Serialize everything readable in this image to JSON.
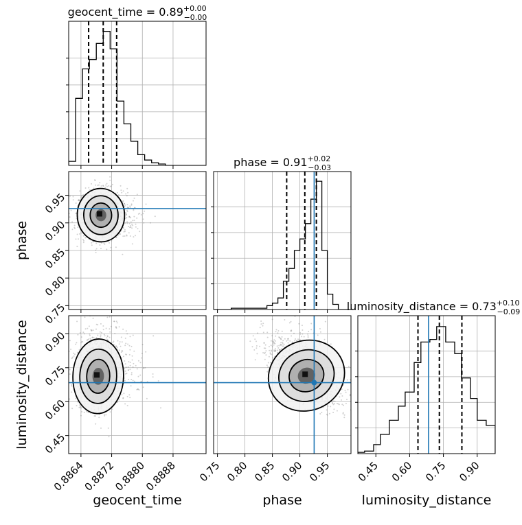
{
  "chart_data": {
    "type": "corner",
    "parameters": [
      {
        "name": "geocent_time",
        "median": 0.887,
        "range": [
          0.88608,
          0.88966
        ],
        "ticks": [
          "0.8864",
          "0.8872",
          "0.8880",
          "0.8888"
        ],
        "tick_values": [
          0.8864,
          0.8872,
          0.888,
          0.8888
        ],
        "truth": null,
        "quantiles": [
          0.8866,
          0.88698,
          0.88733
        ],
        "title": {
          "base": "geocent_time = 0.89",
          "sup": "+0.00",
          "sub": "−0.00"
        },
        "hist": [
          {
            "x": [
              0.88608,
              0.88626
            ],
            "y": 0.03
          },
          {
            "x": [
              0.88626,
              0.88644
            ],
            "y": 0.5
          },
          {
            "x": [
              0.88644,
              0.88662
            ],
            "y": 0.72
          },
          {
            "x": [
              0.88662,
              0.8868
            ],
            "y": 0.79
          },
          {
            "x": [
              0.8868,
              0.88698
            ],
            "y": 0.91
          },
          {
            "x": [
              0.88698,
              0.88716
            ],
            "y": 1.0
          },
          {
            "x": [
              0.88716,
              0.88734
            ],
            "y": 0.87
          },
          {
            "x": [
              0.88734,
              0.88752
            ],
            "y": 0.48
          },
          {
            "x": [
              0.88752,
              0.8877
            ],
            "y": 0.31
          },
          {
            "x": [
              0.8877,
              0.88788
            ],
            "y": 0.18
          },
          {
            "x": [
              0.88788,
              0.88806
            ],
            "y": 0.08
          },
          {
            "x": [
              0.88806,
              0.88824
            ],
            "y": 0.04
          },
          {
            "x": [
              0.88824,
              0.88842
            ],
            "y": 0.02
          },
          {
            "x": [
              0.88842,
              0.8886
            ],
            "y": 0.01
          },
          {
            "x": [
              0.8886,
              0.88966
            ],
            "y": 0.0
          }
        ]
      },
      {
        "name": "phase",
        "median": 0.91,
        "range": [
          0.743,
          0.993
        ],
        "ticks": [
          "0.75",
          "0.80",
          "0.85",
          "0.90",
          "0.95"
        ],
        "tick_values": [
          0.75,
          0.8,
          0.85,
          0.9,
          0.95
        ],
        "truth": 0.926,
        "quantiles": [
          0.876,
          0.909,
          0.93
        ],
        "title": {
          "base": "phase = 0.91",
          "sup": "+0.02",
          "sub": "−0.03"
        },
        "hist": [
          {
            "x": [
              0.743,
              0.775
            ],
            "y": 0.0
          },
          {
            "x": [
              0.775,
              0.84
            ],
            "y": 0.01
          },
          {
            "x": [
              0.84,
              0.85
            ],
            "y": 0.03
          },
          {
            "x": [
              0.85,
              0.86
            ],
            "y": 0.05
          },
          {
            "x": [
              0.86,
              0.87
            ],
            "y": 0.09
          },
          {
            "x": [
              0.87,
              0.88
            ],
            "y": 0.22
          },
          {
            "x": [
              0.88,
              0.89
            ],
            "y": 0.32
          },
          {
            "x": [
              0.89,
              0.9
            ],
            "y": 0.46
          },
          {
            "x": [
              0.9,
              0.91
            ],
            "y": 0.55
          },
          {
            "x": [
              0.91,
              0.92
            ],
            "y": 0.67
          },
          {
            "x": [
              0.92,
              0.93
            ],
            "y": 0.86
          },
          {
            "x": [
              0.93,
              0.94
            ],
            "y": 1.0
          },
          {
            "x": [
              0.94,
              0.95
            ],
            "y": 0.46
          },
          {
            "x": [
              0.95,
              0.96
            ],
            "y": 0.12
          },
          {
            "x": [
              0.96,
              0.97
            ],
            "y": 0.04
          },
          {
            "x": [
              0.97,
              0.993
            ],
            "y": 0.0
          }
        ]
      },
      {
        "name": "luminosity_distance",
        "median": 0.73,
        "range": [
          0.37,
          0.98
        ],
        "ticks": [
          "0.45",
          "0.60",
          "0.75",
          "0.90"
        ],
        "tick_values": [
          0.45,
          0.6,
          0.75,
          0.9
        ],
        "truth": 0.684,
        "quantiles": [
          0.637,
          0.732,
          0.832
        ],
        "title": {
          "base": "luminosity_distance = 0.73",
          "sup": "+0.10",
          "sub": "−0.09"
        },
        "hist": [
          {
            "x": [
              0.37,
              0.4
            ],
            "y": 0.01
          },
          {
            "x": [
              0.4,
              0.44
            ],
            "y": 0.02
          },
          {
            "x": [
              0.44,
              0.47
            ],
            "y": 0.07
          },
          {
            "x": [
              0.47,
              0.51
            ],
            "y": 0.15
          },
          {
            "x": [
              0.51,
              0.55
            ],
            "y": 0.26
          },
          {
            "x": [
              0.55,
              0.58
            ],
            "y": 0.37
          },
          {
            "x": [
              0.58,
              0.62
            ],
            "y": 0.48
          },
          {
            "x": [
              0.62,
              0.65
            ],
            "y": 0.71
          },
          {
            "x": [
              0.65,
              0.69
            ],
            "y": 0.87
          },
          {
            "x": [
              0.69,
              0.72
            ],
            "y": 0.89
          },
          {
            "x": [
              0.72,
              0.76
            ],
            "y": 0.99
          },
          {
            "x": [
              0.76,
              0.8
            ],
            "y": 0.87
          },
          {
            "x": [
              0.8,
              0.83
            ],
            "y": 0.78
          },
          {
            "x": [
              0.83,
              0.87
            ],
            "y": 0.59
          },
          {
            "x": [
              0.87,
              0.9
            ],
            "y": 0.43
          },
          {
            "x": [
              0.9,
              0.94
            ],
            "y": 0.26
          },
          {
            "x": [
              0.94,
              0.98
            ],
            "y": 0.22
          }
        ]
      }
    ],
    "density_panels": [
      {
        "x_param": 0,
        "y_param": 1,
        "center": [
          0.88692,
          0.914
        ],
        "spread": [
          0.00028,
          0.022
        ],
        "corr": -0.05
      },
      {
        "x_param": 0,
        "y_param": 2,
        "center": [
          0.88685,
          0.712
        ],
        "spread": [
          0.0003,
          0.075
        ],
        "corr": 0.05
      },
      {
        "x_param": 1,
        "y_param": 2,
        "center": [
          0.912,
          0.715
        ],
        "spread": [
          0.032,
          0.07
        ],
        "corr": -0.6
      }
    ],
    "truth_color": "#1f77b4",
    "grid": true
  }
}
